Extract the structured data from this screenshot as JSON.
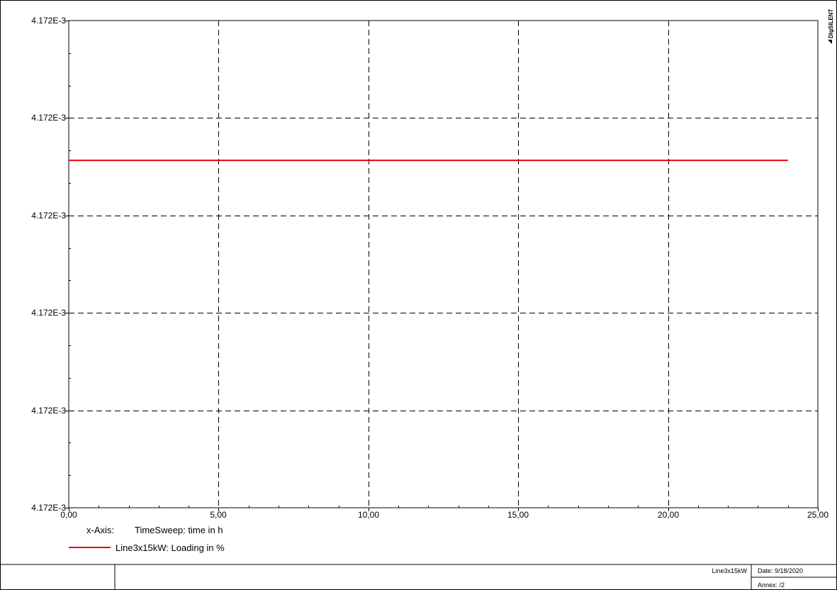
{
  "chart_data": {
    "type": "line",
    "x_tick_labels": [
      "0,00",
      "5,00",
      "10,00",
      "15,00",
      "20,00",
      "25,00"
    ],
    "x_ticks": [
      0,
      5,
      10,
      15,
      20,
      25
    ],
    "xlim": [
      0,
      25
    ],
    "y_tick_labels": [
      "4.172E-3",
      "4.172E-3",
      "4.172E-3",
      "4.172E-3",
      "4.172E-3",
      "4.172E-3"
    ],
    "grid": true,
    "legend": {
      "xaxis_prefix": "x-Axis:",
      "xaxis_label": "TimeSweep: time in h"
    },
    "series": [
      {
        "name": "Line3x15kW: Loading in %",
        "color": "#e8000b",
        "x": [
          0,
          24
        ],
        "y_level": 0.713
      }
    ]
  },
  "brand": "DIgSILENT",
  "footer": {
    "object": "Line3x15kW",
    "date": "Date: 9/18/2020",
    "annex": "Annex:  /2"
  }
}
